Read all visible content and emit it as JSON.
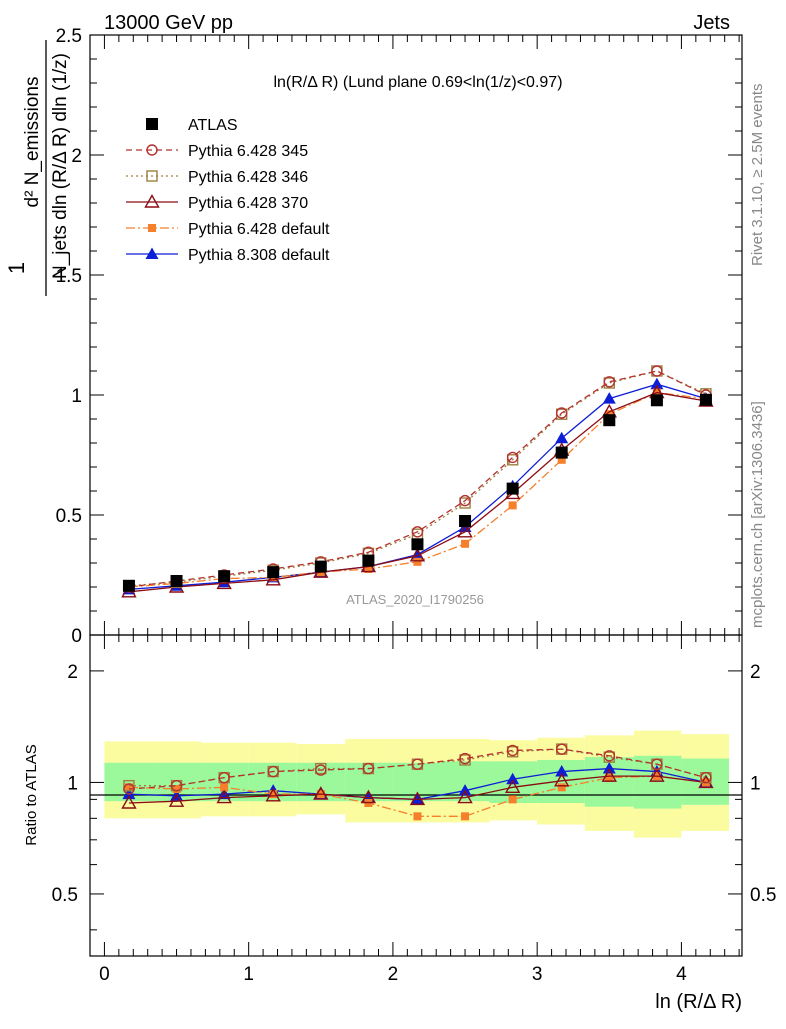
{
  "header": {
    "left": "13000 GeV pp",
    "right": "Jets"
  },
  "side_labels": {
    "rivet": "Rivet 3.1.10, ≥ 2.5M events",
    "mcplots": "mcplots.cern.ch [arXiv:1306.3436]"
  },
  "chart_data": [
    {
      "type": "line",
      "panel": "main",
      "title": "ln(R/Δ R) (Lund plane 0.69<ln(1/z)<0.97)",
      "ylabel_numerator": "d² N_emissions",
      "ylabel_denominator": "N_jets dln (R/Δ R) dln (1/z)",
      "ylabel_prefix": "1",
      "watermark": "ATLAS_2020_I1790256",
      "xlim": [
        -0.1,
        4.42
      ],
      "ylim": [
        0,
        2.5
      ],
      "y_ticks": [
        0,
        0.5,
        1,
        1.5,
        2,
        2.5
      ],
      "y_tick_labels": [
        "0",
        "0.5",
        "1",
        "1.5",
        "2",
        "2.5"
      ],
      "legend_position": "top-left",
      "x": [
        0.17,
        0.5,
        0.83,
        1.17,
        1.5,
        1.83,
        2.17,
        2.5,
        2.83,
        3.17,
        3.5,
        3.83,
        4.17
      ],
      "series": [
        {
          "name": "ATLAS",
          "color": "#000000",
          "marker": "square-filled",
          "line": "none",
          "values": [
            0.205,
            0.225,
            0.245,
            0.262,
            0.285,
            0.31,
            0.378,
            0.475,
            0.61,
            0.76,
            0.895,
            0.978,
            0.98
          ]
        },
        {
          "name": "Pythia 6.428 345",
          "color": "#b5312f",
          "marker": "circle-open",
          "line": "dashed",
          "values": [
            0.2,
            0.225,
            0.25,
            0.275,
            0.305,
            0.345,
            0.43,
            0.56,
            0.74,
            0.925,
            1.055,
            1.1,
            1.0
          ]
        },
        {
          "name": "Pythia 6.428 346",
          "color": "#9c7f3d",
          "marker": "square-open",
          "line": "dotted",
          "values": [
            0.205,
            0.22,
            0.245,
            0.27,
            0.3,
            0.34,
            0.42,
            0.55,
            0.73,
            0.92,
            1.05,
            1.1,
            1.005
          ]
        },
        {
          "name": "Pythia 6.428 370",
          "color": "#8b0c14",
          "marker": "triangle-open",
          "line": "solid",
          "values": [
            0.18,
            0.2,
            0.215,
            0.23,
            0.262,
            0.285,
            0.33,
            0.43,
            0.59,
            0.77,
            0.93,
            1.01,
            0.975
          ]
        },
        {
          "name": "Pythia 6.428 default",
          "color": "#f57f2a",
          "marker": "square-filled-small",
          "line": "dashdot",
          "values": [
            0.2,
            0.215,
            0.235,
            0.24,
            0.262,
            0.275,
            0.305,
            0.38,
            0.54,
            0.73,
            0.92,
            1.01,
            0.985
          ]
        },
        {
          "name": "Pythia 8.308 default",
          "color": "#0d1ed6",
          "marker": "triangle-filled",
          "line": "solid",
          "values": [
            0.19,
            0.205,
            0.22,
            0.24,
            0.262,
            0.285,
            0.335,
            0.45,
            0.62,
            0.82,
            0.985,
            1.045,
            0.985
          ]
        }
      ]
    },
    {
      "type": "line",
      "panel": "ratio",
      "ylabel": "Ratio to ATLAS",
      "xlabel": "ln (R/Δ R)",
      "xlim": [
        -0.1,
        4.42
      ],
      "ylim": [
        0.34,
        2.5
      ],
      "x_ticks": [
        0,
        1,
        2,
        3,
        4
      ],
      "x_tick_labels": [
        "0",
        "1",
        "2",
        "3",
        "4"
      ],
      "y_ticks": [
        0.5,
        1,
        2
      ],
      "y_tick_labels": [
        "0.5",
        "1",
        "2"
      ],
      "bin_edges": [
        0,
        0.33,
        0.67,
        1.0,
        1.33,
        1.67,
        2.0,
        2.33,
        2.67,
        3.0,
        3.33,
        3.67,
        4.0,
        4.33
      ],
      "band_outer": {
        "color": "#fbfba0",
        "low": [
          0.8,
          0.8,
          0.81,
          0.81,
          0.82,
          0.78,
          0.78,
          0.78,
          0.79,
          0.77,
          0.74,
          0.71,
          0.74
        ],
        "high": [
          1.29,
          1.29,
          1.28,
          1.28,
          1.27,
          1.31,
          1.31,
          1.31,
          1.3,
          1.32,
          1.34,
          1.38,
          1.35
        ]
      },
      "band_inner": {
        "color": "#9bf99b",
        "low": [
          0.89,
          0.89,
          0.89,
          0.89,
          0.89,
          0.89,
          0.89,
          0.89,
          0.88,
          0.88,
          0.86,
          0.85,
          0.87
        ],
        "high": [
          1.13,
          1.13,
          1.13,
          1.13,
          1.13,
          1.13,
          1.13,
          1.14,
          1.14,
          1.15,
          1.17,
          1.18,
          1.16
        ]
      },
      "x": [
        0.17,
        0.5,
        0.83,
        1.17,
        1.5,
        1.83,
        2.17,
        2.5,
        2.83,
        3.17,
        3.5,
        3.83,
        4.17
      ],
      "series": [
        {
          "name": "Pythia 6.428 345",
          "color": "#b5312f",
          "marker": "circle-open",
          "line": "dashed",
          "values": [
            0.96,
            0.98,
            1.03,
            1.07,
            1.08,
            1.09,
            1.12,
            1.16,
            1.22,
            1.23,
            1.18,
            1.12,
            1.03
          ]
        },
        {
          "name": "Pythia 6.428 346",
          "color": "#9c7f3d",
          "marker": "square-open",
          "line": "dotted",
          "values": [
            0.98,
            0.98,
            1.03,
            1.07,
            1.09,
            1.09,
            1.12,
            1.15,
            1.21,
            1.23,
            1.17,
            1.12,
            1.03
          ]
        },
        {
          "name": "Pythia 6.428 370",
          "color": "#8b0c14",
          "marker": "triangle-open",
          "line": "solid",
          "values": [
            0.88,
            0.89,
            0.91,
            0.92,
            0.93,
            0.91,
            0.9,
            0.91,
            0.97,
            1.01,
            1.04,
            1.04,
            1.0
          ]
        },
        {
          "name": "Pythia 6.428 default",
          "color": "#f57f2a",
          "marker": "square-filled-small",
          "line": "dashdot",
          "values": [
            0.97,
            0.96,
            0.97,
            0.93,
            0.93,
            0.88,
            0.81,
            0.81,
            0.9,
            0.97,
            1.03,
            1.04,
            1.0
          ]
        },
        {
          "name": "Pythia 8.308 default",
          "color": "#0d1ed6",
          "marker": "triangle-filled",
          "line": "solid",
          "values": [
            0.93,
            0.92,
            0.93,
            0.95,
            0.93,
            0.91,
            0.9,
            0.95,
            1.02,
            1.07,
            1.09,
            1.07,
            1.0
          ]
        }
      ]
    }
  ]
}
